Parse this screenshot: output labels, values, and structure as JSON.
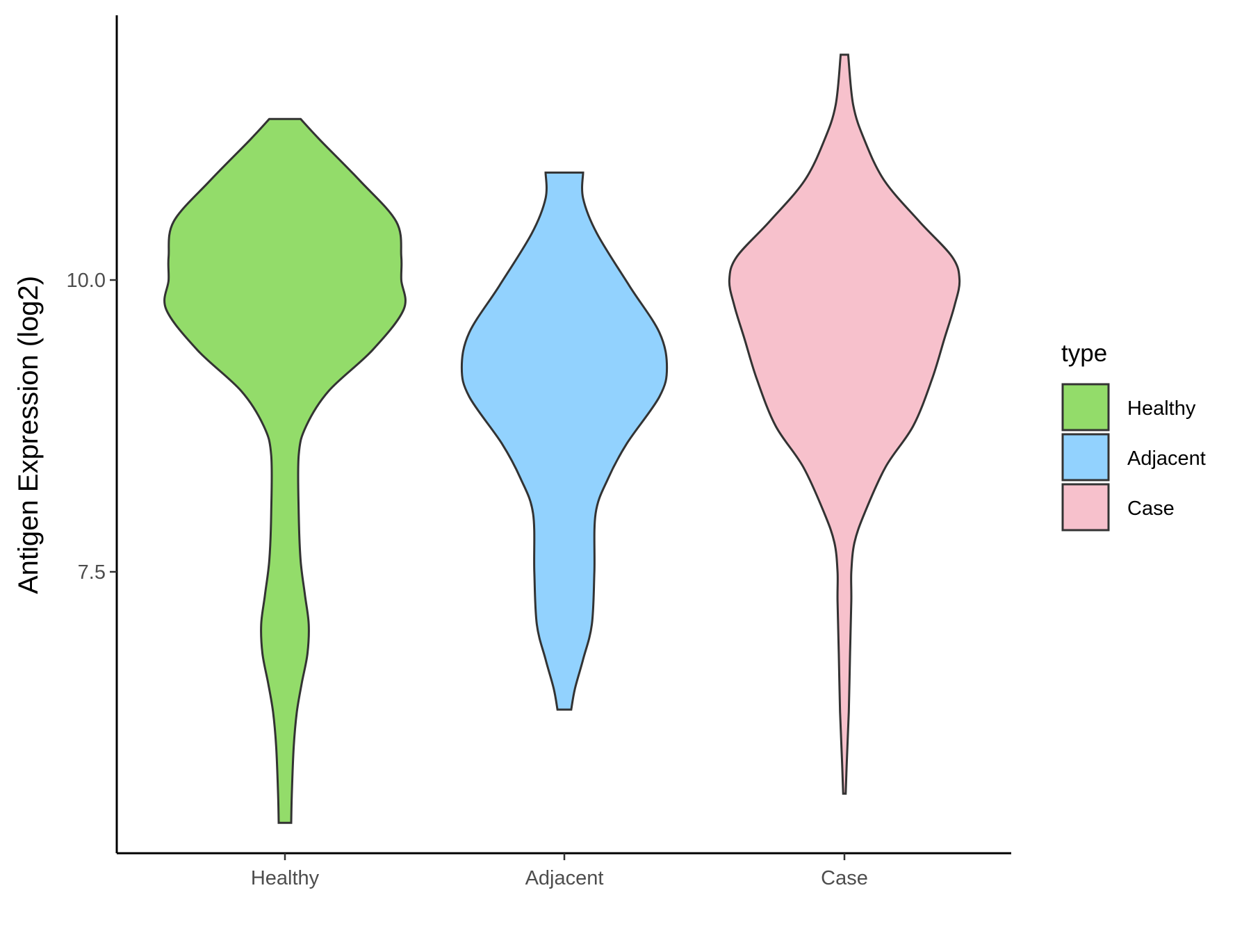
{
  "chart_data": {
    "type": "violin",
    "ylabel": "Antigen Expression (log2)",
    "xlabel": "",
    "categories": [
      "Healthy",
      "Adjacent",
      "Case"
    ],
    "yticks": [
      {
        "value": 7.5,
        "label": "7.5"
      },
      {
        "value": 10.0,
        "label": "10.0"
      }
    ],
    "ylim": [
      5.1,
      12.25
    ],
    "legend": {
      "title": "type",
      "position": "right",
      "entries": [
        "Healthy",
        "Adjacent",
        "Case"
      ]
    },
    "colors": {
      "Healthy": "#93dc6a",
      "Adjacent": "#92d2fe",
      "Case": "#f7c1cc",
      "outline": "#333333"
    },
    "violins": [
      {
        "name": "Healthy",
        "min": 5.35,
        "max": 11.38,
        "density_profile": [
          [
            5.35,
            0.05
          ],
          [
            5.6,
            0.055
          ],
          [
            6.0,
            0.07
          ],
          [
            6.3,
            0.095
          ],
          [
            6.55,
            0.135
          ],
          [
            6.8,
            0.18
          ],
          [
            7.05,
            0.19
          ],
          [
            7.3,
            0.16
          ],
          [
            7.6,
            0.125
          ],
          [
            8.0,
            0.11
          ],
          [
            8.5,
            0.11
          ],
          [
            8.75,
            0.17
          ],
          [
            9.05,
            0.35
          ],
          [
            9.4,
            0.7
          ],
          [
            9.75,
            0.95
          ],
          [
            10.0,
            0.93
          ],
          [
            10.2,
            0.93
          ],
          [
            10.5,
            0.89
          ],
          [
            10.85,
            0.6
          ],
          [
            11.2,
            0.28
          ],
          [
            11.38,
            0.125
          ]
        ]
      },
      {
        "name": "Adjacent",
        "min": 6.32,
        "max": 10.92,
        "density_profile": [
          [
            6.32,
            0.055
          ],
          [
            6.5,
            0.085
          ],
          [
            6.75,
            0.15
          ],
          [
            7.05,
            0.22
          ],
          [
            7.5,
            0.24
          ],
          [
            8.0,
            0.25
          ],
          [
            8.3,
            0.35
          ],
          [
            8.6,
            0.5
          ],
          [
            9.0,
            0.76
          ],
          [
            9.25,
            0.82
          ],
          [
            9.55,
            0.76
          ],
          [
            9.95,
            0.52
          ],
          [
            10.4,
            0.26
          ],
          [
            10.7,
            0.15
          ],
          [
            10.92,
            0.15
          ]
        ]
      },
      {
        "name": "Case",
        "min": 5.6,
        "max": 11.93,
        "density_profile": [
          [
            5.6,
            0.01
          ],
          [
            5.9,
            0.02
          ],
          [
            6.3,
            0.035
          ],
          [
            6.8,
            0.045
          ],
          [
            7.25,
            0.055
          ],
          [
            7.5,
            0.055
          ],
          [
            7.75,
            0.08
          ],
          [
            8.0,
            0.16
          ],
          [
            8.4,
            0.33
          ],
          [
            8.75,
            0.55
          ],
          [
            9.15,
            0.7
          ],
          [
            9.5,
            0.8
          ],
          [
            9.78,
            0.88
          ],
          [
            10.0,
            0.92
          ],
          [
            10.2,
            0.86
          ],
          [
            10.5,
            0.6
          ],
          [
            10.85,
            0.32
          ],
          [
            11.2,
            0.16
          ],
          [
            11.5,
            0.07
          ],
          [
            11.93,
            0.03
          ]
        ]
      }
    ]
  }
}
